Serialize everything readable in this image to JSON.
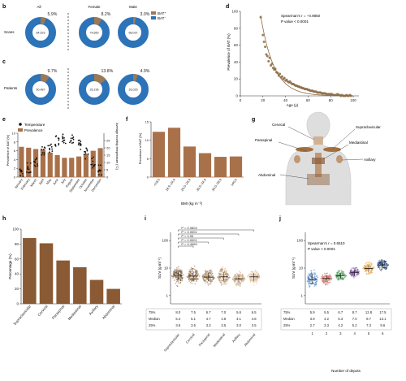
{
  "colors": {
    "bat_pos": "#9c7a57",
    "bat_neg": "#2c73b8",
    "bar_f": "#a9714a",
    "bar_h": "#8a5a34",
    "curve": "#8b6a43",
    "text": "#222222"
  },
  "panel_letters": [
    "b",
    "c",
    "d",
    "e",
    "f",
    "g",
    "h",
    "i",
    "j"
  ],
  "panel_b": {
    "legend": [
      "BAT⁺",
      "BAT⁻"
    ],
    "row_label": "Scans",
    "groups": [
      {
        "name": "All",
        "pos_label": "5.9%",
        "neg_label": "84,523",
        "pos_pct": 5.9
      },
      {
        "name": "Female",
        "pos_label": "8.2%",
        "neg_label": "74,650",
        "pos_pct": 8.2
      },
      {
        "name": "Male",
        "pos_label": "3.0%",
        "neg_label": "68,037",
        "pos_pct": 3.0
      }
    ]
  },
  "panel_c": {
    "row_label": "Patients",
    "groups": [
      {
        "pos_label": "9.7%",
        "neg_label": "50,487",
        "pos_pct": 9.7
      },
      {
        "pos_label": "13.8%",
        "neg_label": "26,196",
        "pos_pct": 13.8
      },
      {
        "pos_label": "4.9%",
        "neg_label": "26,025",
        "pos_pct": 4.9
      }
    ]
  },
  "panel_d": {
    "chart_data": {
      "type": "scatter",
      "xlabel": "Age (y)",
      "ylabel": "Prevalence of BAT (%)",
      "xlim": [
        0,
        105
      ],
      "ylim": [
        0,
        100
      ],
      "xticks": [
        0,
        20,
        40,
        60,
        80,
        100
      ],
      "yticks": [
        0,
        20,
        40,
        60,
        80,
        100
      ],
      "annotation_r": "Spearman's r = −0.9850",
      "annotation_p": "P value < 0.0001",
      "points": [
        [
          18,
          93
        ],
        [
          20,
          72
        ],
        [
          21,
          64
        ],
        [
          22,
          58
        ],
        [
          23,
          49
        ],
        [
          24,
          47
        ],
        [
          25,
          41
        ],
        [
          26,
          45
        ],
        [
          27,
          36
        ],
        [
          28,
          38
        ],
        [
          29,
          33
        ],
        [
          30,
          31
        ],
        [
          31,
          32
        ],
        [
          32,
          28
        ],
        [
          33,
          27
        ],
        [
          34,
          24
        ],
        [
          35,
          26
        ],
        [
          36,
          22
        ],
        [
          37,
          23
        ],
        [
          38,
          20
        ],
        [
          39,
          21
        ],
        [
          40,
          18
        ],
        [
          41,
          19
        ],
        [
          42,
          17
        ],
        [
          43,
          16
        ],
        [
          44,
          17
        ],
        [
          45,
          15
        ],
        [
          46,
          14
        ],
        [
          47,
          14
        ],
        [
          48,
          13
        ],
        [
          49,
          12
        ],
        [
          50,
          12
        ],
        [
          51,
          11
        ],
        [
          52,
          11
        ],
        [
          53,
          10
        ],
        [
          54,
          10
        ],
        [
          55,
          9
        ],
        [
          56,
          9
        ],
        [
          57,
          8
        ],
        [
          58,
          8
        ],
        [
          59,
          8
        ],
        [
          60,
          7
        ],
        [
          61,
          7
        ],
        [
          62,
          6
        ],
        [
          63,
          6
        ],
        [
          64,
          6
        ],
        [
          65,
          5
        ],
        [
          66,
          5
        ],
        [
          67,
          5
        ],
        [
          68,
          4
        ],
        [
          69,
          4
        ],
        [
          70,
          4
        ],
        [
          71,
          4
        ],
        [
          72,
          3
        ],
        [
          73,
          3
        ],
        [
          74,
          3
        ],
        [
          75,
          3
        ],
        [
          76,
          2
        ],
        [
          77,
          2
        ],
        [
          78,
          2
        ],
        [
          79,
          2
        ],
        [
          80,
          2
        ],
        [
          81,
          2
        ],
        [
          82,
          1
        ],
        [
          83,
          1
        ],
        [
          84,
          1
        ],
        [
          85,
          1
        ],
        [
          86,
          2
        ],
        [
          87,
          1
        ],
        [
          88,
          1
        ],
        [
          89,
          0
        ],
        [
          90,
          1
        ],
        [
          91,
          0
        ],
        [
          92,
          0
        ],
        [
          93,
          0
        ],
        [
          94,
          1
        ],
        [
          95,
          0
        ],
        [
          96,
          0
        ],
        [
          97,
          1
        ],
        [
          98,
          0
        ]
      ]
    }
  },
  "panel_e": {
    "chart_data": {
      "type": "bar",
      "legend": [
        "Temperature",
        "Prevalence"
      ],
      "ylabel_left": "Prevalence of BAT (%)",
      "ylabel_right": "Average monthly temperature (°C)",
      "ylim_left": [
        0,
        10
      ],
      "ylim_right": [
        0,
        30
      ],
      "yticks_left": [
        0,
        2,
        4,
        6,
        8,
        10
      ],
      "yticks_right": [
        0,
        5,
        10,
        15,
        20,
        25
      ],
      "categories": [
        "January",
        "February",
        "March",
        "April",
        "May",
        "June",
        "July",
        "August",
        "September",
        "October",
        "November",
        "December"
      ],
      "values": [
        6.9,
        6.7,
        6.4,
        6.3,
        5.6,
        5.0,
        4.4,
        4.4,
        4.7,
        5.2,
        6.0,
        6.6
      ],
      "temperature": [
        4,
        6,
        11,
        17,
        21,
        25,
        27,
        27,
        22,
        16,
        10,
        5
      ]
    }
  },
  "panel_f": {
    "chart_data": {
      "type": "bar",
      "xlabel": "BMI (kg m⁻²)",
      "ylabel": "Prevalence of BAT (%)",
      "ylim": [
        0,
        15
      ],
      "yticks": [
        0,
        5,
        10,
        15
      ],
      "categories": [
        "<18.5",
        "18.5–24.9",
        "25.0–29.9",
        "30.0–34.9",
        "35.0–39.9",
        "≥40.0"
      ],
      "values": [
        12.3,
        13.4,
        8.3,
        6.5,
        5.5,
        5.6
      ]
    }
  },
  "panel_g": {
    "labels": [
      "Cervical",
      "Supraclavicular",
      "Paraspinal",
      "Mediastinal",
      "Axillary",
      "Abdominal"
    ]
  },
  "panel_h": {
    "chart_data": {
      "type": "bar",
      "ylabel": "Percentage (%)",
      "ylim": [
        0,
        100
      ],
      "yticks": [
        0,
        20,
        40,
        60,
        80,
        100
      ],
      "categories": [
        "Supraclavicular",
        "Cervical",
        "Paraspinal",
        "Mediastinal",
        "Axillary",
        "Abdominal"
      ],
      "values": [
        88,
        81,
        58,
        49,
        32,
        20
      ]
    }
  },
  "panel_i": {
    "chart_data": {
      "type": "scatter",
      "ylabel": "SUV (g ml⁻¹)",
      "yticks": [
        "1",
        "10",
        "100"
      ],
      "categories": [
        "Supraclavicular",
        "Cervical",
        "Paraspinal",
        "Mediastinal",
        "Axillary",
        "Abdominal"
      ],
      "comparisons": [
        "P = 0.0604",
        "P < 0.0001",
        "P < 0.05",
        "P < 0.0001",
        "P = 0.4969"
      ],
      "table": {
        "rows": [
          {
            "label": "75%",
            "values": [
              "8.0",
              "7.5",
              "6.7",
              "7.0",
              "5.6",
              "6.5"
            ]
          },
          {
            "label": "Median",
            "values": [
              "5.4",
              "5.1",
              "4.7",
              "4.8",
              "4.1",
              "4.8"
            ]
          },
          {
            "label": "25%",
            "values": [
              "3.6",
              "3.5",
              "3.3",
              "3.5",
              "3.0",
              "3.5"
            ]
          }
        ]
      }
    }
  },
  "panel_j": {
    "chart_data": {
      "type": "scatter",
      "ylabel": "SUV (g ml⁻¹)",
      "xlabel": "Number of depots",
      "yticks": [
        "1",
        "10",
        "100"
      ],
      "annotation_r": "Spearman's r = 0.6510",
      "annotation_p": "P value < 0.0001",
      "categories": [
        "1",
        "2",
        "3",
        "4",
        "5",
        "6"
      ],
      "group_colors": [
        "#3b78c3",
        "#d2695f",
        "#4a9a5a",
        "#7a4fa3",
        "#e09f3e",
        "#1f3a73"
      ],
      "table": {
        "rows": [
          {
            "label": "75%",
            "values": [
              "5.9",
              "5.5",
              "6.7",
              "8.7",
              "12.8",
              "17.5"
            ]
          },
          {
            "label": "Median",
            "values": [
              "3.9",
              "4.2",
              "5.3",
              "7.0",
              "9.7",
              "13.1"
            ]
          },
          {
            "label": "25%",
            "values": [
              "2.7",
              "3.3",
              "4.2",
              "5.2",
              "7.3",
              "9.6"
            ]
          }
        ]
      }
    }
  }
}
